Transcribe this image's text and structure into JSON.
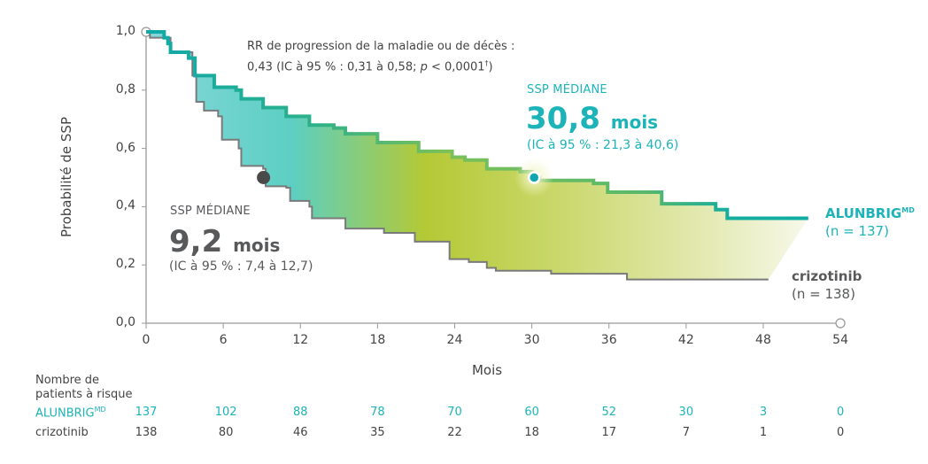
{
  "chart_data": {
    "type": "line",
    "subtype": "kaplan-meier",
    "xlabel": "Mois",
    "ylabel": "Probabilité de SSP",
    "xlim": [
      0,
      54
    ],
    "ylim": [
      0,
      1
    ],
    "x_ticks": [
      0,
      6,
      12,
      18,
      24,
      30,
      36,
      42,
      48,
      54
    ],
    "x_tick_labels": [
      "0",
      "6",
      "12",
      "18",
      "24",
      "30",
      "36",
      "42",
      "48",
      "54"
    ],
    "y_ticks": [
      0,
      0.2,
      0.4,
      0.6,
      0.8,
      1.0
    ],
    "y_tick_labels": [
      "0,0",
      "0,2",
      "0,4",
      "0,6",
      "0,8",
      "1,0"
    ],
    "series": [
      {
        "name": "ALUNBRIG",
        "superscript": "MD",
        "n_label": "(n = 137)",
        "color": "#19b0a8",
        "end_t": 51.5,
        "steps": [
          [
            0,
            1.0
          ],
          [
            1.4,
            0.98
          ],
          [
            1.7,
            0.96
          ],
          [
            1.9,
            0.93
          ],
          [
            3.3,
            0.91
          ],
          [
            3.8,
            0.85
          ],
          [
            5.3,
            0.81
          ],
          [
            7.0,
            0.8
          ],
          [
            7.4,
            0.77
          ],
          [
            9.1,
            0.74
          ],
          [
            10.9,
            0.71
          ],
          [
            12.7,
            0.68
          ],
          [
            14.6,
            0.67
          ],
          [
            15.5,
            0.65
          ],
          [
            18.0,
            0.62
          ],
          [
            21.2,
            0.59
          ],
          [
            23.8,
            0.57
          ],
          [
            24.8,
            0.56
          ],
          [
            26.5,
            0.53
          ],
          [
            29.1,
            0.52
          ],
          [
            30.0,
            0.5
          ],
          [
            30.6,
            0.49
          ],
          [
            34.8,
            0.48
          ],
          [
            35.9,
            0.45
          ],
          [
            40.1,
            0.41
          ],
          [
            44.3,
            0.39
          ],
          [
            45.2,
            0.36
          ]
        ],
        "median": 30.8,
        "median_label": "SSP MÉDIANE",
        "median_value": "30,8",
        "median_unit": "mois",
        "median_ci": "(IC à 95 % : 21,3 à 40,6)"
      },
      {
        "name": "crizotinib",
        "n_label": "(n = 138)",
        "color": "#7a7a7a",
        "end_t": 48.4,
        "steps": [
          [
            0,
            1.0
          ],
          [
            0.3,
            0.98
          ],
          [
            1.9,
            0.93
          ],
          [
            3.6,
            0.85
          ],
          [
            3.9,
            0.76
          ],
          [
            4.5,
            0.73
          ],
          [
            5.6,
            0.71
          ],
          [
            5.9,
            0.63
          ],
          [
            7.2,
            0.6
          ],
          [
            7.4,
            0.54
          ],
          [
            9.1,
            0.53
          ],
          [
            9.3,
            0.47
          ],
          [
            10.9,
            0.465
          ],
          [
            11.2,
            0.42
          ],
          [
            12.7,
            0.4
          ],
          [
            12.9,
            0.36
          ],
          [
            15.5,
            0.325
          ],
          [
            18.5,
            0.31
          ],
          [
            20.9,
            0.28
          ],
          [
            23.6,
            0.22
          ],
          [
            25.1,
            0.21
          ],
          [
            26.5,
            0.19
          ],
          [
            27.2,
            0.18
          ],
          [
            31.5,
            0.17
          ],
          [
            37.4,
            0.15
          ]
        ],
        "median": 9.2,
        "median_label": "SSP MÉDIANE",
        "median_value": "9,2",
        "median_unit": "mois",
        "median_ci": "(IC à 95 % : 7,4 à 12,7)"
      }
    ],
    "annotation": {
      "line1": "RR de progression de la maladie ou de décès :",
      "line2_pre": "0,43 (IC à 95 % : 0,31 à 0,58; ",
      "line2_p": "p",
      "line2_post": " < 0,0001",
      "line2_dagger": "†",
      "line2_close": ")"
    },
    "risk_table": {
      "title_line1": "Nombre de",
      "title_line2": "patients à risque",
      "rows": [
        {
          "label": "ALUNBRIG",
          "superscript": "MD",
          "values": [
            "137",
            "102",
            "88",
            "78",
            "70",
            "60",
            "52",
            "30",
            "3",
            "0"
          ]
        },
        {
          "label": "crizotinib",
          "values": [
            "138",
            "80",
            "46",
            "35",
            "22",
            "18",
            "17",
            "7",
            "1",
            "0"
          ]
        }
      ]
    }
  }
}
